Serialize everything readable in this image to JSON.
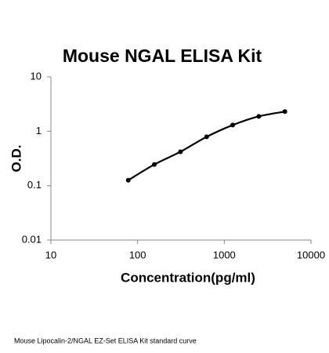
{
  "chart_data": {
    "type": "scatter",
    "title": "Mouse NGAL ELISA Kit",
    "x_label": "Concentration(pg/ml)",
    "y_label": "O.D.",
    "caption": "Mouse Lipocalin-2/NGAL EZ-Set ELISA Kit standard curve",
    "x": [
      78,
      156,
      312,
      625,
      1250,
      2500,
      5000
    ],
    "values": [
      0.126,
      0.245,
      0.42,
      0.79,
      1.3,
      1.88,
      2.3
    ],
    "color": "#000000",
    "xlim": [
      10,
      10000
    ],
    "xticks": [
      10,
      100,
      1000,
      10000
    ],
    "ylim": [
      0.01,
      10
    ],
    "yticks": [
      0.01,
      0.1,
      1,
      10
    ],
    "xscale": "log",
    "yscale": "log",
    "line": true
  }
}
